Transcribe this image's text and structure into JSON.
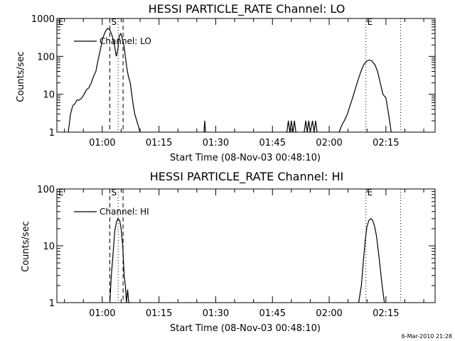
{
  "footer_date": "6-Mar-2010 21:28",
  "chart_data": [
    {
      "type": "line",
      "title": "HESSI PARTICLE_RATE Channel: LO",
      "xlabel": "Start Time (08-Nov-03 00:48:10)",
      "ylabel": "Counts/sec",
      "yscale": "log",
      "ylim": [
        1,
        1000
      ],
      "yticks": [
        1,
        10,
        100,
        1000
      ],
      "ytick_labels": [
        "1",
        "10",
        "100",
        "1000"
      ],
      "xlim_min": [
        0,
        100
      ],
      "xticks_min": [
        12,
        27,
        42,
        57,
        72,
        87
      ],
      "xtick_labels": [
        "01:00",
        "01:15",
        "01:30",
        "01:45",
        "02:00",
        "02:15"
      ],
      "legend": "Channel: LO",
      "markers": [
        {
          "label": "E",
          "x_min": 0,
          "style": "none"
        },
        {
          "label": "S",
          "x_min": 14,
          "style": "dashed"
        },
        {
          "label": "",
          "x_min": 16.2,
          "style": "dotted"
        },
        {
          "label": "",
          "x_min": 17.5,
          "style": "dashed"
        },
        {
          "label": "E",
          "x_min": 81.7,
          "style": "dotted"
        },
        {
          "label": "",
          "x_min": 90.9,
          "style": "dotted"
        }
      ],
      "series": [
        {
          "name": "Channel: LO",
          "x": [
            3.0,
            3.6,
            4.2,
            4.7,
            5.3,
            5.9,
            6.6,
            7.2,
            7.8,
            8.5,
            9.1,
            9.7,
            10.3,
            10.9,
            11.5,
            12.1,
            12.8,
            13.4,
            14.0,
            14.6,
            15.2,
            15.7,
            16.1,
            16.5,
            16.9,
            17.3,
            17.7,
            18.1,
            18.5,
            18.9,
            19.4,
            19.8,
            20.2,
            20.6,
            21.1,
            21.5,
            22.0
          ],
          "y": [
            1,
            3,
            5,
            5.5,
            7,
            7,
            8,
            10,
            13,
            15,
            20,
            30,
            40,
            80,
            150,
            300,
            450,
            550,
            500,
            350,
            200,
            100,
            150,
            350,
            400,
            300,
            200,
            100,
            50,
            30,
            20,
            10,
            5,
            3,
            2,
            1.5,
            1
          ]
        },
        {
          "name": "Channel: LO",
          "x": [
            38.9,
            39.1,
            39.3
          ],
          "y": [
            1,
            2,
            1
          ]
        },
        {
          "name": "Channel: LO",
          "x": [
            60.8,
            61.2,
            61.6,
            62.0,
            62.4,
            62.8,
            63.2
          ],
          "y": [
            1,
            2,
            1,
            2,
            1,
            2,
            1
          ]
        },
        {
          "name": "Channel: LO",
          "x": [
            65.4,
            65.8,
            66.2,
            66.6,
            67.0,
            67.6,
            68.0,
            68.4,
            68.8
          ],
          "y": [
            1,
            2,
            1,
            2,
            1,
            2,
            1,
            2,
            1
          ]
        },
        {
          "name": "Channel: LO",
          "x": [
            74.6,
            75.3,
            76.0,
            76.8,
            77.5,
            78.2,
            79.0,
            79.7,
            80.4,
            81.1,
            81.9,
            82.6,
            83.3,
            84.1,
            84.8,
            85.5,
            86.2,
            87.0,
            87.7,
            88.4
          ],
          "y": [
            1,
            1.5,
            2,
            3,
            5,
            8,
            15,
            25,
            40,
            60,
            75,
            80,
            75,
            60,
            40,
            20,
            10,
            8,
            3,
            1
          ]
        }
      ]
    },
    {
      "type": "line",
      "title": "HESSI PARTICLE_RATE Channel: HI",
      "xlabel": "Start Time (08-Nov-03 00:48:10)",
      "ylabel": "Counts/sec",
      "yscale": "log",
      "ylim": [
        1,
        100
      ],
      "yticks": [
        1,
        10,
        100
      ],
      "ytick_labels": [
        "1",
        "10",
        "100"
      ],
      "xlim_min": [
        0,
        100
      ],
      "xticks_min": [
        12,
        27,
        42,
        57,
        72,
        87
      ],
      "xtick_labels": [
        "01:00",
        "01:15",
        "01:30",
        "01:45",
        "02:00",
        "02:15"
      ],
      "legend": "Channel: HI",
      "markers": [
        {
          "label": "E",
          "x_min": 0,
          "style": "none"
        },
        {
          "label": "S",
          "x_min": 14,
          "style": "dashed"
        },
        {
          "label": "",
          "x_min": 16.2,
          "style": "dotted"
        },
        {
          "label": "",
          "x_min": 17.5,
          "style": "dashed"
        },
        {
          "label": "E",
          "x_min": 81.7,
          "style": "dotted"
        },
        {
          "label": "",
          "x_min": 90.9,
          "style": "dotted"
        }
      ],
      "series": [
        {
          "name": "Channel: HI",
          "x": [
            14.0,
            14.4,
            14.9,
            15.3,
            15.7,
            16.1,
            16.6,
            17.0,
            17.4,
            17.8,
            18.1,
            18.4,
            18.7,
            19.0,
            19.3
          ],
          "y": [
            1,
            3,
            8,
            18,
            25,
            30,
            28,
            20,
            10,
            3,
            2,
            1,
            1.7,
            1,
            1
          ]
        },
        {
          "name": "Channel: HI",
          "x": [
            79.8,
            80.5,
            81.0,
            81.5,
            82.0,
            82.5,
            83.0,
            83.5,
            84.0,
            84.5,
            85.0,
            85.5,
            86.0,
            86.6
          ],
          "y": [
            1,
            2,
            5,
            12,
            22,
            28,
            30,
            28,
            22,
            15,
            8,
            4,
            2,
            1
          ]
        }
      ]
    }
  ]
}
